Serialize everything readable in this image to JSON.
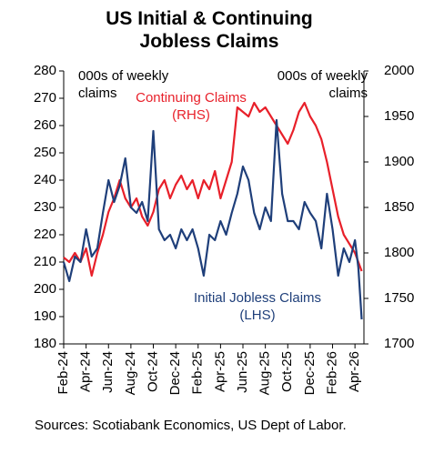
{
  "chart_data": {
    "type": "line",
    "title": "US Initial & Continuing Jobless Claims",
    "y_label": "000s of weekly claims",
    "y2_label": "000s of weekly claims",
    "source": "Sources: Scotiabank Economics, US Dept of Labor.",
    "x": [
      0,
      0.5,
      1,
      1.5,
      2,
      2.5,
      3,
      3.5,
      4,
      4.5,
      5,
      5.5,
      6,
      6.5,
      7,
      7.5,
      8,
      8.5,
      9,
      9.5,
      10,
      10.5,
      11,
      11.5,
      12,
      12.5,
      13,
      13.5,
      14,
      14.5,
      15,
      15.5,
      16,
      16.5,
      17,
      17.5,
      18,
      18.5,
      19,
      19.5,
      20,
      20.5,
      21,
      21.5,
      22,
      22.5,
      23,
      23.5,
      24,
      24.5,
      25,
      25.5,
      26,
      26.3,
      26.6
    ],
    "xlim": [
      0,
      26.8
    ],
    "xticks": [
      {
        "value": 0,
        "label": "Feb-24"
      },
      {
        "value": 2,
        "label": "Apr-24"
      },
      {
        "value": 4,
        "label": "Jun-24"
      },
      {
        "value": 6,
        "label": "Aug-24"
      },
      {
        "value": 8,
        "label": "Oct-24"
      },
      {
        "value": 10,
        "label": "Dec-24"
      },
      {
        "value": 12,
        "label": "Feb-25"
      },
      {
        "value": 14,
        "label": "Apr-25"
      },
      {
        "value": 16,
        "label": "Jun-25"
      },
      {
        "value": 18,
        "label": "Aug-25"
      },
      {
        "value": 20,
        "label": "Oct-25"
      },
      {
        "value": 22,
        "label": "Dec-25"
      },
      {
        "value": 24,
        "label": "Feb-26"
      },
      {
        "value": 26,
        "label": "Apr-26"
      }
    ],
    "ylim": [
      180,
      280
    ],
    "yticks": [
      180,
      190,
      200,
      210,
      220,
      230,
      240,
      250,
      260,
      270,
      280
    ],
    "y2lim": [
      1700,
      2000
    ],
    "y2ticks": [
      1700,
      1750,
      1800,
      1850,
      1900,
      1950,
      2000
    ],
    "series": [
      {
        "name": "Initial Jobless Claims (LHS)",
        "color": "#1f3f7a",
        "axis": "y",
        "values": [
          210,
          203,
          212,
          210,
          222,
          212,
          215,
          228,
          240,
          232,
          238,
          248,
          230,
          228,
          232,
          225,
          258,
          222,
          218,
          220,
          215,
          222,
          218,
          222,
          215,
          205,
          220,
          218,
          225,
          220,
          228,
          235,
          245,
          240,
          228,
          222,
          230,
          225,
          262,
          235,
          225,
          225,
          222,
          232,
          228,
          225,
          215,
          235,
          222,
          205,
          215,
          210,
          218,
          208,
          189
        ]
      },
      {
        "name": "Continuing Claims (RHS)",
        "color": "#e8202a",
        "axis": "y2",
        "values": [
          1795,
          1790,
          1800,
          1790,
          1805,
          1775,
          1800,
          1820,
          1845,
          1860,
          1880,
          1860,
          1850,
          1860,
          1840,
          1830,
          1845,
          1870,
          1880,
          1860,
          1875,
          1885,
          1870,
          1880,
          1860,
          1880,
          1870,
          1890,
          1860,
          1880,
          1900,
          1960,
          1955,
          1950,
          1965,
          1955,
          1960,
          1950,
          1940,
          1930,
          1920,
          1935,
          1955,
          1965,
          1950,
          1940,
          1925,
          1900,
          1870,
          1840,
          1820,
          1810,
          1800,
          1790,
          1780
        ]
      }
    ]
  }
}
